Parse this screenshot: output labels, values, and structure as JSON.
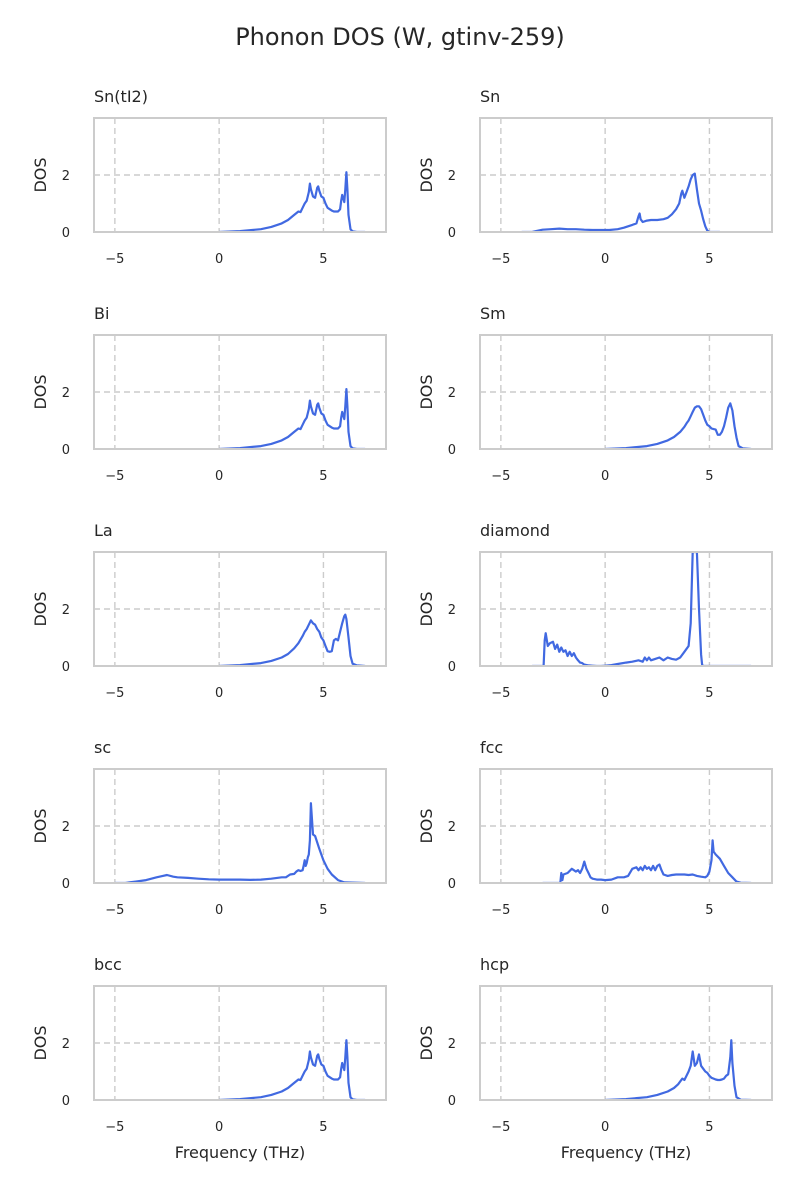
{
  "figure": {
    "title": "Phonon DOS (W, gtinv-259)"
  },
  "chart_data": [
    {
      "type": "line",
      "title": "Sn(tI2)",
      "xlabel": "",
      "ylabel": "DOS",
      "xlim": [
        -6,
        8
      ],
      "ylim": [
        0,
        4
      ],
      "xticks": [
        -5,
        0,
        5
      ],
      "yticks": [
        0,
        2
      ],
      "grid": true,
      "series": [
        {
          "color": "#4169e1",
          "x": [
            0,
            1,
            2,
            2.5,
            3,
            3.3,
            3.6,
            3.8,
            3.9,
            4.0,
            4.1,
            4.2,
            4.3,
            4.35,
            4.4,
            4.5,
            4.6,
            4.7,
            4.75,
            4.8,
            4.9,
            5.0,
            5.1,
            5.2,
            5.3,
            5.4,
            5.5,
            5.6,
            5.7,
            5.8,
            5.85,
            5.9,
            6.0,
            6.05,
            6.1,
            6.15,
            6.2,
            6.3,
            6.4,
            6.6,
            7.0
          ],
          "y": [
            0,
            0.03,
            0.1,
            0.18,
            0.3,
            0.42,
            0.6,
            0.72,
            0.7,
            0.85,
            1.0,
            1.1,
            1.4,
            1.7,
            1.5,
            1.25,
            1.2,
            1.55,
            1.6,
            1.45,
            1.25,
            1.2,
            1.0,
            0.85,
            0.8,
            0.75,
            0.72,
            0.72,
            0.72,
            0.8,
            1.1,
            1.3,
            1.05,
            1.5,
            2.1,
            1.5,
            0.6,
            0.1,
            0.02,
            0,
            0
          ]
        }
      ]
    },
    {
      "type": "line",
      "title": "Sn",
      "xlabel": "",
      "ylabel": "DOS",
      "xlim": [
        -6,
        8
      ],
      "ylim": [
        0,
        4
      ],
      "xticks": [
        -5,
        0,
        5
      ],
      "yticks": [
        0,
        2
      ],
      "grid": true,
      "series": [
        {
          "color": "#4169e1",
          "x": [
            -4,
            -3.5,
            -3.2,
            -3.0,
            -2.6,
            -2.2,
            -1.8,
            -1.4,
            -1.0,
            -0.6,
            -0.2,
            0.2,
            0.6,
            0.9,
            1.1,
            1.3,
            1.5,
            1.6,
            1.65,
            1.7,
            1.8,
            2.0,
            2.2,
            2.5,
            2.8,
            3.0,
            3.2,
            3.4,
            3.55,
            3.65,
            3.7,
            3.8,
            3.9,
            4.0,
            4.1,
            4.2,
            4.3,
            4.4,
            4.5,
            4.6,
            4.7,
            4.8,
            4.9,
            5.0,
            5.2,
            5.5
          ],
          "y": [
            0,
            0,
            0.05,
            0.08,
            0.1,
            0.12,
            0.1,
            0.1,
            0.08,
            0.07,
            0.07,
            0.07,
            0.1,
            0.15,
            0.2,
            0.25,
            0.3,
            0.55,
            0.65,
            0.45,
            0.35,
            0.4,
            0.42,
            0.42,
            0.45,
            0.5,
            0.62,
            0.8,
            1.0,
            1.35,
            1.45,
            1.2,
            1.4,
            1.6,
            1.85,
            2.0,
            2.05,
            1.5,
            1.0,
            0.75,
            0.45,
            0.2,
            0.05,
            0,
            0,
            0
          ]
        }
      ]
    },
    {
      "type": "line",
      "title": "Bi",
      "xlabel": "",
      "ylabel": "DOS",
      "xlim": [
        -6,
        8
      ],
      "ylim": [
        0,
        4
      ],
      "xticks": [
        -5,
        0,
        5
      ],
      "yticks": [
        0,
        2
      ],
      "grid": true,
      "series": [
        {
          "color": "#4169e1",
          "x": [
            0,
            1,
            2,
            2.5,
            3,
            3.3,
            3.6,
            3.8,
            3.9,
            4.0,
            4.1,
            4.2,
            4.3,
            4.35,
            4.4,
            4.5,
            4.6,
            4.7,
            4.75,
            4.8,
            4.9,
            5.0,
            5.1,
            5.2,
            5.3,
            5.4,
            5.5,
            5.6,
            5.7,
            5.8,
            5.85,
            5.9,
            6.0,
            6.05,
            6.1,
            6.15,
            6.2,
            6.3,
            6.4,
            6.6,
            7.0
          ],
          "y": [
            0,
            0.03,
            0.1,
            0.18,
            0.3,
            0.42,
            0.6,
            0.72,
            0.7,
            0.85,
            1.0,
            1.1,
            1.4,
            1.7,
            1.5,
            1.25,
            1.2,
            1.55,
            1.6,
            1.45,
            1.25,
            1.2,
            1.0,
            0.85,
            0.8,
            0.75,
            0.72,
            0.72,
            0.72,
            0.8,
            1.1,
            1.3,
            1.05,
            1.5,
            2.1,
            1.5,
            0.6,
            0.1,
            0.02,
            0,
            0
          ]
        }
      ]
    },
    {
      "type": "line",
      "title": "Sm",
      "xlabel": "",
      "ylabel": "DOS",
      "xlim": [
        -6,
        8
      ],
      "ylim": [
        0,
        4
      ],
      "xticks": [
        -5,
        0,
        5
      ],
      "yticks": [
        0,
        2
      ],
      "grid": true,
      "series": [
        {
          "color": "#4169e1",
          "x": [
            0,
            1,
            2,
            2.5,
            3,
            3.3,
            3.6,
            3.8,
            3.9,
            4.0,
            4.1,
            4.2,
            4.3,
            4.4,
            4.5,
            4.6,
            4.7,
            4.8,
            4.9,
            5.0,
            5.1,
            5.2,
            5.3,
            5.4,
            5.5,
            5.6,
            5.7,
            5.8,
            5.9,
            6.0,
            6.1,
            6.2,
            6.3,
            6.4,
            6.6,
            7.0
          ],
          "y": [
            0,
            0.03,
            0.1,
            0.18,
            0.3,
            0.42,
            0.6,
            0.78,
            0.9,
            1.0,
            1.15,
            1.3,
            1.45,
            1.5,
            1.5,
            1.4,
            1.2,
            1.0,
            0.85,
            0.8,
            0.72,
            0.7,
            0.68,
            0.5,
            0.5,
            0.6,
            0.8,
            1.1,
            1.45,
            1.6,
            1.35,
            0.8,
            0.4,
            0.1,
            0.02,
            0
          ]
        }
      ]
    },
    {
      "type": "line",
      "title": "La",
      "xlabel": "",
      "ylabel": "DOS",
      "xlim": [
        -6,
        8
      ],
      "ylim": [
        0,
        4
      ],
      "xticks": [
        -5,
        0,
        5
      ],
      "yticks": [
        0,
        2
      ],
      "grid": true,
      "series": [
        {
          "color": "#4169e1",
          "x": [
            0,
            1,
            2,
            2.5,
            3,
            3.3,
            3.6,
            3.8,
            4.0,
            4.1,
            4.2,
            4.3,
            4.4,
            4.5,
            4.6,
            4.7,
            4.8,
            4.9,
            5.0,
            5.1,
            5.2,
            5.3,
            5.4,
            5.5,
            5.6,
            5.7,
            5.8,
            5.9,
            6.0,
            6.05,
            6.1,
            6.2,
            6.3,
            6.4,
            6.6,
            7.0
          ],
          "y": [
            0,
            0.03,
            0.1,
            0.18,
            0.3,
            0.42,
            0.62,
            0.8,
            1.05,
            1.2,
            1.3,
            1.45,
            1.6,
            1.5,
            1.45,
            1.3,
            1.2,
            1.0,
            0.9,
            0.7,
            0.52,
            0.5,
            0.52,
            0.9,
            0.95,
            0.9,
            1.2,
            1.5,
            1.75,
            1.8,
            1.65,
            1.0,
            0.35,
            0.08,
            0.02,
            0
          ]
        }
      ]
    },
    {
      "type": "line",
      "title": "diamond",
      "xlabel": "",
      "ylabel": "DOS",
      "xlim": [
        -6,
        8
      ],
      "ylim": [
        0,
        4
      ],
      "xticks": [
        -5,
        0,
        5
      ],
      "yticks": [
        0,
        2
      ],
      "grid": true,
      "series": [
        {
          "color": "#4169e1",
          "x": [
            -3.5,
            -2.95,
            -2.9,
            -2.85,
            -2.75,
            -2.65,
            -2.5,
            -2.4,
            -2.3,
            -2.2,
            -2.1,
            -2.0,
            -1.9,
            -1.8,
            -1.7,
            -1.6,
            -1.5,
            -1.4,
            -1.3,
            -1.2,
            -1.1,
            -1.0,
            -0.8,
            -0.6,
            -0.4,
            -0.2,
            0.0,
            0.3,
            0.6,
            1.0,
            1.3,
            1.6,
            1.8,
            1.9,
            2.0,
            2.1,
            2.2,
            2.4,
            2.6,
            2.8,
            3.0,
            3.2,
            3.4,
            3.6,
            3.8,
            4.0,
            4.1,
            4.2,
            4.25,
            4.3,
            4.35,
            4.4,
            4.5,
            4.6,
            4.65,
            4.7,
            5.0,
            6.0,
            7.0
          ],
          "y": [
            0,
            0,
            0.9,
            1.15,
            0.7,
            0.8,
            0.85,
            0.6,
            0.75,
            0.5,
            0.65,
            0.5,
            0.55,
            0.35,
            0.5,
            0.35,
            0.45,
            0.3,
            0.2,
            0.12,
            0.1,
            0.05,
            0.02,
            0.01,
            0.0,
            0.0,
            0.01,
            0.03,
            0.07,
            0.12,
            0.15,
            0.2,
            0.15,
            0.3,
            0.2,
            0.3,
            0.2,
            0.25,
            0.3,
            0.2,
            0.3,
            0.25,
            0.22,
            0.3,
            0.5,
            0.7,
            1.5,
            4.0,
            4.0,
            4.0,
            4.0,
            4.0,
            2.0,
            0.4,
            0.05,
            0,
            0,
            0,
            0
          ]
        }
      ]
    },
    {
      "type": "line",
      "title": "sc",
      "xlabel": "",
      "ylabel": "DOS",
      "xlim": [
        -6,
        8
      ],
      "ylim": [
        0,
        4
      ],
      "xticks": [
        -5,
        0,
        5
      ],
      "yticks": [
        0,
        2
      ],
      "grid": true,
      "series": [
        {
          "color": "#4169e1",
          "x": [
            -5,
            -4.5,
            -4.3,
            -4.0,
            -3.5,
            -3.0,
            -2.7,
            -2.5,
            -2.2,
            -2.0,
            -1.5,
            -1.0,
            -0.5,
            0.0,
            0.5,
            1.0,
            1.5,
            2.0,
            2.5,
            3.0,
            3.2,
            3.4,
            3.6,
            3.7,
            3.8,
            3.9,
            4.0,
            4.05,
            4.1,
            4.15,
            4.2,
            4.25,
            4.3,
            4.35,
            4.4,
            4.5,
            4.6,
            4.8,
            5.0,
            5.2,
            5.4,
            5.7,
            6.0,
            7.0
          ],
          "y": [
            0,
            0,
            0.02,
            0.05,
            0.1,
            0.2,
            0.25,
            0.28,
            0.22,
            0.2,
            0.18,
            0.15,
            0.13,
            0.12,
            0.12,
            0.12,
            0.11,
            0.12,
            0.15,
            0.2,
            0.2,
            0.3,
            0.32,
            0.4,
            0.45,
            0.42,
            0.45,
            0.6,
            0.8,
            0.6,
            0.7,
            0.9,
            1.0,
            1.5,
            2.8,
            1.7,
            1.65,
            1.2,
            0.8,
            0.5,
            0.3,
            0.1,
            0.02,
            0
          ]
        }
      ]
    },
    {
      "type": "line",
      "title": "fcc",
      "xlabel": "",
      "ylabel": "DOS",
      "xlim": [
        -6,
        8
      ],
      "ylim": [
        0,
        4
      ],
      "xticks": [
        -5,
        0,
        5
      ],
      "yticks": [
        0,
        2
      ],
      "grid": true,
      "series": [
        {
          "color": "#4169e1",
          "x": [
            -3.0,
            -2.15,
            -2.1,
            -2.05,
            -2.0,
            -1.8,
            -1.6,
            -1.5,
            -1.4,
            -1.3,
            -1.2,
            -1.1,
            -1.0,
            -0.9,
            -0.8,
            -0.7,
            -0.6,
            -0.4,
            -0.2,
            0.0,
            0.3,
            0.6,
            0.9,
            1.1,
            1.3,
            1.5,
            1.6,
            1.7,
            1.8,
            1.9,
            2.0,
            2.1,
            2.2,
            2.3,
            2.4,
            2.5,
            2.6,
            2.7,
            2.8,
            3.0,
            3.2,
            3.4,
            3.6,
            3.8,
            4.0,
            4.2,
            4.4,
            4.6,
            4.8,
            4.9,
            5.0,
            5.1,
            5.15,
            5.2,
            5.3,
            5.5,
            5.7,
            5.9,
            6.1,
            6.3,
            6.5,
            7.0
          ],
          "y": [
            0,
            0,
            0.35,
            0.1,
            0.3,
            0.35,
            0.5,
            0.45,
            0.4,
            0.45,
            0.35,
            0.5,
            0.75,
            0.5,
            0.35,
            0.2,
            0.15,
            0.12,
            0.12,
            0.1,
            0.12,
            0.2,
            0.2,
            0.25,
            0.5,
            0.55,
            0.45,
            0.55,
            0.45,
            0.6,
            0.5,
            0.55,
            0.45,
            0.6,
            0.45,
            0.6,
            0.65,
            0.45,
            0.3,
            0.25,
            0.28,
            0.3,
            0.3,
            0.3,
            0.28,
            0.3,
            0.25,
            0.22,
            0.2,
            0.25,
            0.4,
            0.8,
            1.5,
            1.1,
            1.0,
            0.85,
            0.6,
            0.35,
            0.2,
            0.05,
            0.01,
            0
          ]
        }
      ]
    },
    {
      "type": "line",
      "title": "bcc",
      "xlabel": "Frequency (THz)",
      "ylabel": "DOS",
      "xlim": [
        -6,
        8
      ],
      "ylim": [
        0,
        4
      ],
      "xticks": [
        -5,
        0,
        5
      ],
      "yticks": [
        0,
        2
      ],
      "grid": true,
      "series": [
        {
          "color": "#4169e1",
          "x": [
            0,
            1,
            2,
            2.5,
            3,
            3.3,
            3.6,
            3.8,
            3.9,
            4.0,
            4.1,
            4.2,
            4.3,
            4.35,
            4.4,
            4.5,
            4.6,
            4.7,
            4.75,
            4.8,
            4.9,
            5.0,
            5.1,
            5.2,
            5.3,
            5.4,
            5.5,
            5.6,
            5.7,
            5.8,
            5.85,
            5.9,
            6.0,
            6.05,
            6.1,
            6.15,
            6.2,
            6.3,
            6.4,
            6.6,
            7.0
          ],
          "y": [
            0,
            0.03,
            0.1,
            0.18,
            0.3,
            0.42,
            0.6,
            0.72,
            0.7,
            0.85,
            1.0,
            1.1,
            1.4,
            1.7,
            1.5,
            1.25,
            1.2,
            1.55,
            1.6,
            1.45,
            1.25,
            1.2,
            1.0,
            0.85,
            0.8,
            0.75,
            0.72,
            0.72,
            0.72,
            0.8,
            1.1,
            1.3,
            1.05,
            1.5,
            2.1,
            1.5,
            0.6,
            0.1,
            0.02,
            0,
            0
          ]
        }
      ]
    },
    {
      "type": "line",
      "title": "hcp",
      "xlabel": "Frequency (THz)",
      "ylabel": "DOS",
      "xlim": [
        -6,
        8
      ],
      "ylim": [
        0,
        4
      ],
      "xticks": [
        -5,
        0,
        5
      ],
      "yticks": [
        0,
        2
      ],
      "grid": true,
      "series": [
        {
          "color": "#4169e1",
          "x": [
            0,
            1,
            2,
            2.5,
            3,
            3.3,
            3.5,
            3.7,
            3.8,
            3.9,
            4.0,
            4.1,
            4.2,
            4.3,
            4.4,
            4.5,
            4.6,
            4.7,
            4.8,
            4.9,
            5.0,
            5.1,
            5.2,
            5.3,
            5.4,
            5.5,
            5.6,
            5.7,
            5.8,
            5.9,
            6.0,
            6.05,
            6.1,
            6.2,
            6.3,
            6.5,
            7.0
          ],
          "y": [
            0,
            0.03,
            0.1,
            0.18,
            0.3,
            0.42,
            0.55,
            0.75,
            0.7,
            0.85,
            1.0,
            1.2,
            1.7,
            1.2,
            1.3,
            1.6,
            1.2,
            1.1,
            1.0,
            0.95,
            0.85,
            0.78,
            0.75,
            0.72,
            0.7,
            0.7,
            0.72,
            0.75,
            0.85,
            0.9,
            1.5,
            2.1,
            1.3,
            0.5,
            0.1,
            0.01,
            0
          ]
        }
      ]
    }
  ]
}
